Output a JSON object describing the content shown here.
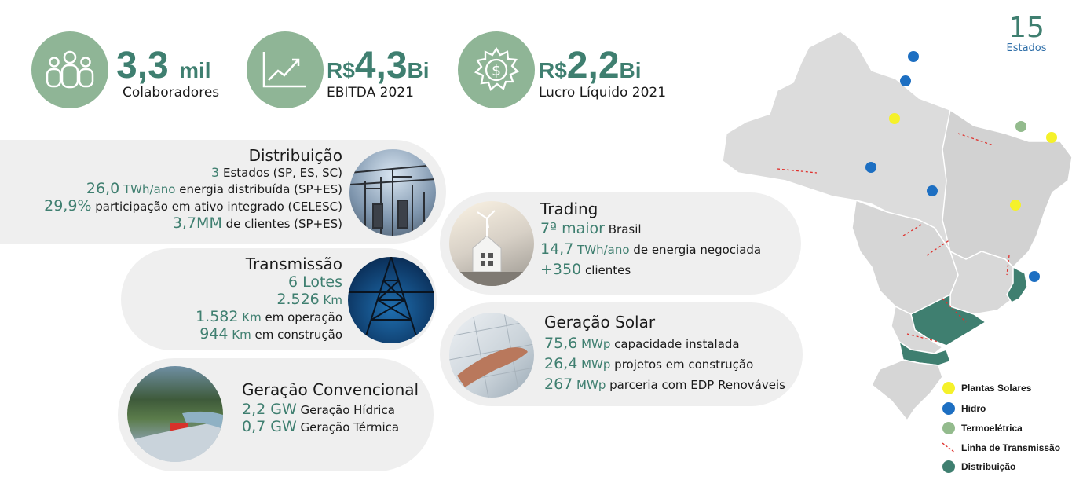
{
  "kpis": [
    {
      "value": "3,3",
      "suffix": "mil",
      "label": "Colaboradores",
      "icon": "people-icon"
    },
    {
      "prefix": "R$",
      "value": "4,3",
      "suffix": "Bi",
      "label": "EBITDA 2021",
      "icon": "growth-chart-icon"
    },
    {
      "prefix": "R$",
      "value": "2,2",
      "suffix": "Bi",
      "label": "Lucro Líquido 2021",
      "icon": "dollar-badge-icon"
    }
  ],
  "distribuicao": {
    "title": "Distribuição",
    "l1_num": "3",
    "l1_text": "Estados (SP, ES, SC)",
    "l2_num": "26,0",
    "l2_unit": "TWh/ano",
    "l2_text": "energia distribuída (SP+ES)",
    "l3_num": "29,9%",
    "l3_text": "participação em ativo integrado (CELESC)",
    "l4_num": "3,7MM",
    "l4_text": "de clientes (SP+ES)"
  },
  "transmissao": {
    "title": "Transmissão",
    "l1": "6 Lotes",
    "l2_num": "2.526",
    "l2_unit": "Km",
    "l3_num": "1.582",
    "l3_unit": "Km",
    "l3_text": "em operação",
    "l4_num": "944",
    "l4_unit": "Km",
    "l4_text": "em construção"
  },
  "convencional": {
    "title": "Geração Convencional",
    "l1_num": "2,2 GW",
    "l1_text": "Geração Hídrica",
    "l2_num": "0,7 GW",
    "l2_text": "Geração Térmica"
  },
  "trading": {
    "title": "Trading",
    "l1_num": "7ª maior",
    "l1_text": "Brasil",
    "l2_num": "14,7",
    "l2_unit": "TWh/ano",
    "l2_text": "de energia negociada",
    "l3_num": "+350",
    "l3_text": "clientes"
  },
  "solar": {
    "title": "Geração Solar",
    "l1_num": "75,6",
    "l1_unit": "MWp",
    "l1_text": "capacidade instalada",
    "l2_num": "26,4",
    "l2_unit": "MWp",
    "l2_text": "projetos em construção",
    "l3_num": "267",
    "l3_unit": "MWp",
    "l3_text": "parceria com EDP Renováveis"
  },
  "map": {
    "states_count": "15",
    "states_label": "Estados",
    "legend": [
      {
        "label": "Plantas Solares",
        "color": "#f5f12a"
      },
      {
        "label": "Hidro",
        "color": "#1d6fc2"
      },
      {
        "label": "Termoelétrica",
        "color": "#93bb8d"
      },
      {
        "label": "Linha de Transmissão",
        "color": "#e0302c"
      },
      {
        "label": "Distribuição",
        "color": "#3f7f70"
      }
    ]
  }
}
